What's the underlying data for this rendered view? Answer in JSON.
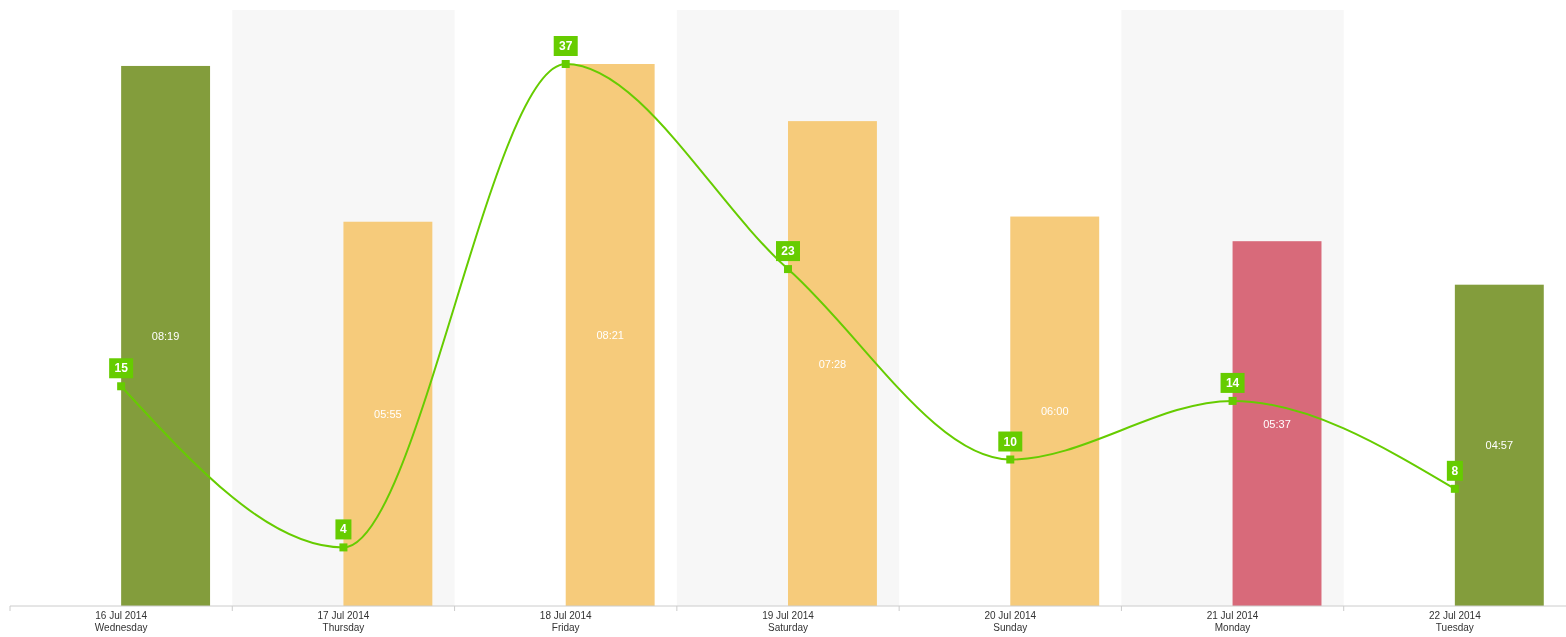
{
  "chart_data": {
    "type": "bar",
    "categories": [
      "16 Jul 2014\nWednesday",
      "17 Jul 2014\nThursday",
      "18 Jul 2014\nFriday",
      "19 Jul 2014\nSaturday",
      "20 Jul 2014\nSunday",
      "21 Jul 2014\nMonday",
      "22 Jul 2014\nTuesday"
    ],
    "series": [
      {
        "values": [
          8.32,
          5.92,
          8.35,
          7.47,
          6.0,
          5.62,
          4.95
        ],
        "colors": [
          "#839d3c",
          "#f6cb7b",
          "#f6cb7b",
          "#f6cb7b",
          "#f6cb7b",
          "#d86a7a",
          "#839d3c"
        ],
        "value_labels": [
          "08:19",
          "05:55",
          "08:21",
          "07:28",
          "06:00",
          "05:37",
          "04:57"
        ]
      },
      {
        "type": "line",
        "axis": "y2",
        "color": "#66cc00",
        "marker": "square",
        "values": [
          15,
          4,
          37,
          23,
          10,
          14,
          8
        ],
        "value_labels": [
          "15",
          "4",
          "37",
          "23",
          "10",
          "14",
          "8"
        ]
      }
    ],
    "bands": [
      {
        "axis": "x",
        "from": "17 Jul 2014\nThursday",
        "to": "17 Jul 2014\nThursday",
        "color": "#f7f7f7"
      },
      {
        "axis": "x",
        "from": "19 Jul 2014\nSaturday",
        "to": "19 Jul 2014\nSaturday",
        "color": "#f7f7f7"
      },
      {
        "axis": "x",
        "from": "21 Jul 2014\nMonday",
        "to": "21 Jul 2014\nMonday",
        "color": "#f7f7f7"
      }
    ]
  }
}
